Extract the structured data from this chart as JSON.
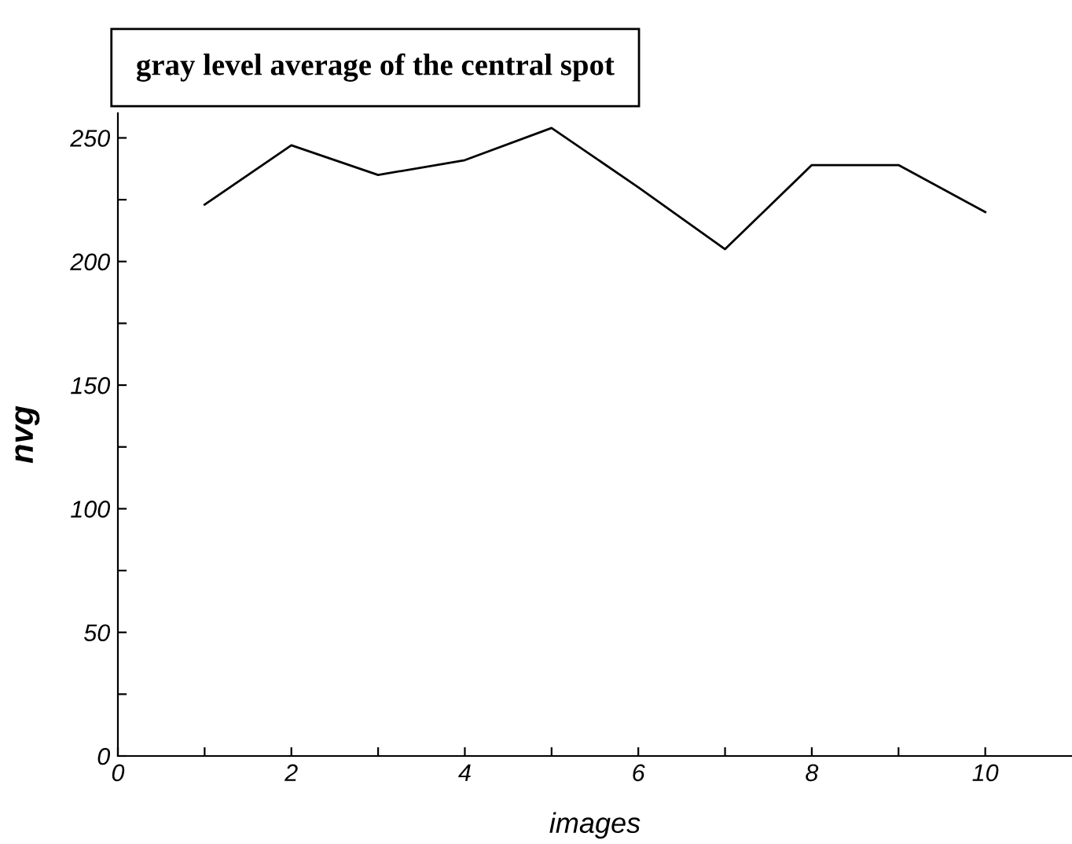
{
  "chart_data": {
    "type": "line",
    "title": "gray level average of the central spot",
    "xlabel": "images",
    "ylabel": "nvg",
    "x": [
      1,
      2,
      3,
      4,
      5,
      6,
      7,
      8,
      9,
      10
    ],
    "series": [
      {
        "color": "#000000",
        "values": [
          223,
          247,
          235,
          241,
          254,
          230,
          205,
          239,
          239,
          220
        ]
      }
    ],
    "xlim": [
      0,
      11
    ],
    "ylim": [
      0,
      260
    ],
    "xticks": [
      0,
      {
        "value": 1,
        "label": null
      },
      2,
      {
        "value": 3,
        "label": null
      },
      4,
      {
        "value": 5,
        "label": null
      },
      6,
      {
        "value": 7,
        "label": null
      },
      8,
      {
        "value": 9,
        "label": null
      },
      10
    ],
    "yticks": [
      0,
      {
        "value": 25,
        "label": null
      },
      50,
      {
        "value": 75,
        "label": null
      },
      100,
      {
        "value": 125,
        "label": null
      },
      150,
      {
        "value": 175,
        "label": null
      },
      200,
      {
        "value": 225,
        "label": null
      },
      250
    ],
    "grid": false,
    "legend": false,
    "marker": "none",
    "line_style": "solid"
  }
}
